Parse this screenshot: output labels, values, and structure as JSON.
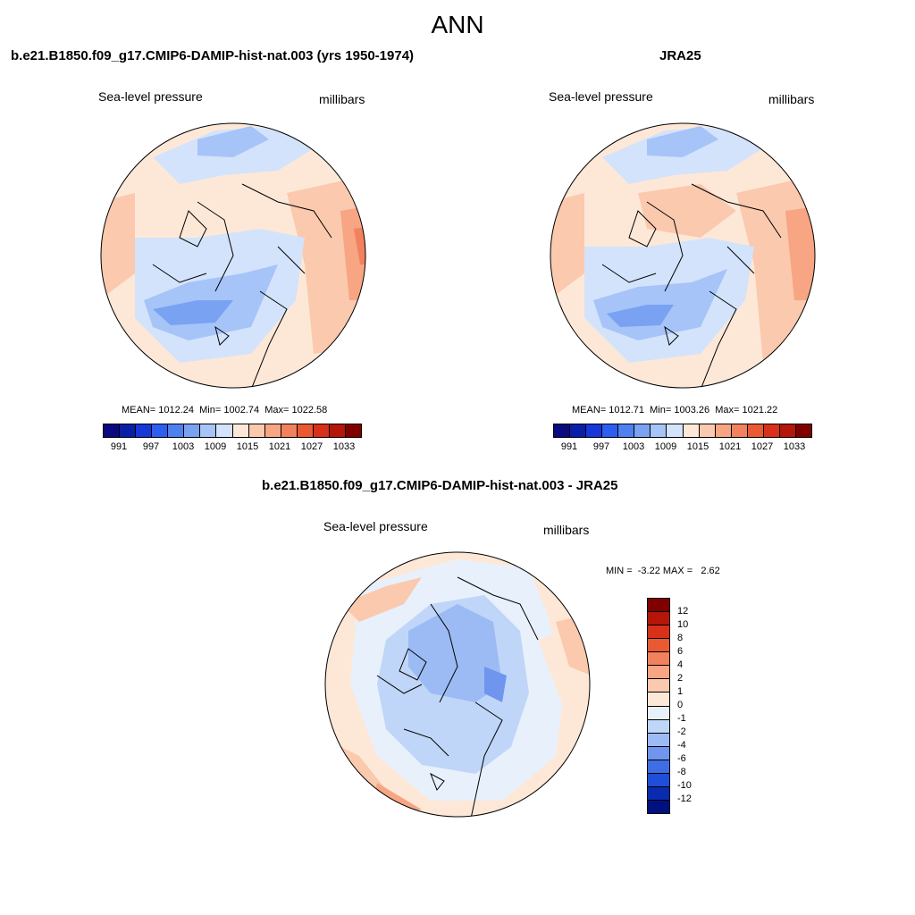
{
  "title": "ANN",
  "panels": [
    {
      "title": "b.e21.B1850.f09_g17.CMIP6-DAMIP-hist-nat.003 (yrs 1950-1974)",
      "variable": "Sea-level pressure",
      "units": "millibars",
      "stats": "MEAN= 1012.24  Min= 1002.74  Max= 1022.58"
    },
    {
      "title": "JRA25",
      "variable": "Sea-level pressure",
      "units": "millibars",
      "stats": "MEAN= 1012.71  Min= 1003.26  Max= 1021.22"
    },
    {
      "title": "b.e21.B1850.f09_g17.CMIP6-DAMIP-hist-nat.003 - JRA25",
      "variable": "Sea-level pressure",
      "units": "millibars",
      "stats": "MIN =  -3.22 MAX =   2.62"
    }
  ],
  "colorbar_abs": {
    "labels": [
      "991",
      "997",
      "1003",
      "1009",
      "1015",
      "1021",
      "1027",
      "1033"
    ],
    "colors": [
      "#0a0a80",
      "#0a1fa8",
      "#1638d8",
      "#2e5ef0",
      "#4f80f0",
      "#7aa2f2",
      "#a6c4f8",
      "#d3e3fb",
      "#fde8d8",
      "#fbc9ad",
      "#f7a583",
      "#f2825d",
      "#e95a33",
      "#d9301a",
      "#b61509",
      "#800000"
    ]
  },
  "colorbar_diff": {
    "labels": [
      "12",
      "10",
      "8",
      "6",
      "4",
      "2",
      "1",
      "0",
      "-1",
      "-2",
      "-4",
      "-6",
      "-8",
      "-10",
      "-12"
    ],
    "colors": [
      "#800000",
      "#b61509",
      "#d9301a",
      "#e95a33",
      "#f2825d",
      "#f7a583",
      "#fbc9ad",
      "#fde8d8",
      "#e8f0fc",
      "#c0d6f8",
      "#9cbbf4",
      "#6f95ee",
      "#3f6de4",
      "#1f4ed8",
      "#0a2ab0",
      "#001080"
    ]
  }
}
